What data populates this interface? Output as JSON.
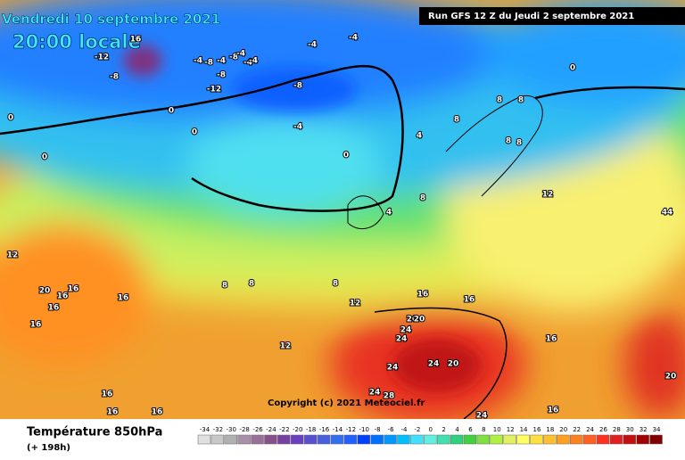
{
  "header": {
    "date": "Vendredi 10 septembre 2021",
    "time": "20:00 locale",
    "run": "Run GFS 12 Z du Jeudi 2 septembre 2021",
    "copyright": "Copyright (c) 2021 Meteociel.fr"
  },
  "footer": {
    "title": "Température 850hPa",
    "lead": "(+ 198h)"
  },
  "map": {
    "labels": [
      "16",
      "-12",
      "-8",
      "-4",
      "-4",
      "-8",
      "-4",
      "-8",
      "-12",
      "-4",
      "-4",
      "-8",
      "-4",
      "-4",
      "0",
      "0",
      "0",
      "-4",
      "-8",
      "0",
      "0",
      "0",
      "4",
      "8",
      "8",
      "8",
      "8",
      "8",
      "12",
      "44",
      "4",
      "8",
      "12",
      "16",
      "20",
      "16",
      "16",
      "16",
      "12",
      "8",
      "8",
      "8",
      "12",
      "16",
      "16",
      "20",
      "24",
      "24",
      "20",
      "24",
      "24",
      "20",
      "28",
      "24",
      "16",
      "16",
      "16",
      "16",
      "16",
      "24",
      "16",
      "20"
    ],
    "scale": {
      "ticks": [
        -34,
        -32,
        -30,
        -28,
        -26,
        -24,
        -22,
        -20,
        -18,
        -16,
        -14,
        -12,
        -10,
        -8,
        -6,
        -4,
        -2,
        0,
        2,
        4,
        6,
        8,
        10,
        12,
        14,
        16,
        18,
        20,
        22,
        24,
        26,
        28,
        30,
        32,
        34
      ],
      "colors": [
        "#e0e0e0",
        "#c8c8c8",
        "#b0b0b0",
        "#a890a8",
        "#987098",
        "#885088",
        "#7840a0",
        "#6840c0",
        "#5850d0",
        "#4860e0",
        "#3070f0",
        "#2060ff",
        "#0040ff",
        "#0070ff",
        "#0098ff",
        "#00c0ff",
        "#40e0ff",
        "#60f0e0",
        "#40e0b0",
        "#30d080",
        "#40d040",
        "#80e040",
        "#b0f040",
        "#e0f060",
        "#ffff60",
        "#ffe040",
        "#ffc030",
        "#ffa020",
        "#ff8020",
        "#ff6020",
        "#ff3020",
        "#e02020",
        "#c01010",
        "#a00000",
        "#800000"
      ]
    }
  }
}
